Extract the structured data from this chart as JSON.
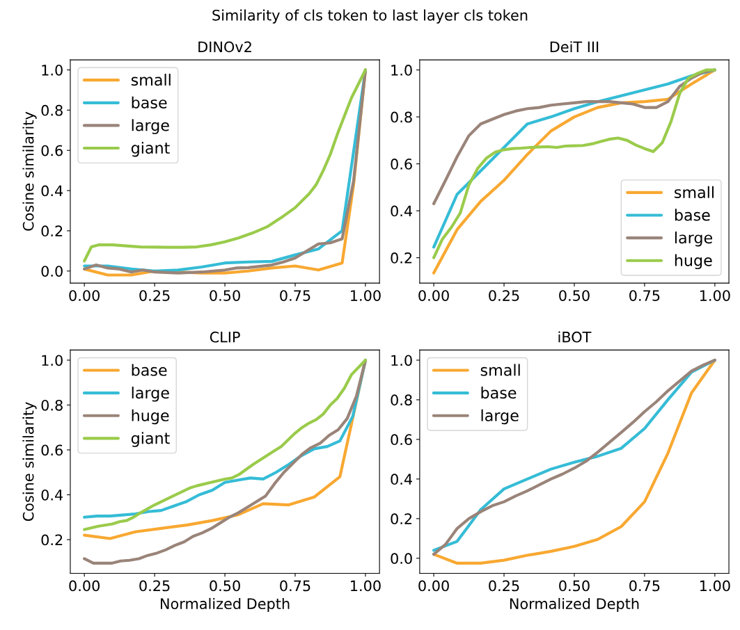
{
  "chart_data": [
    {
      "type": "line",
      "title": "DINOv2",
      "ylabel": "Cosine similarity",
      "annotations": [
        "Similarity of cls token to last layer cls token"
      ],
      "legend": "upper left",
      "grid": false,
      "xlim": [
        -0.05,
        1.05
      ],
      "ylim": [
        -0.06,
        1.05
      ],
      "xticks": [
        {
          "value": 0,
          "label": "0.00"
        },
        {
          "value": 0.25,
          "label": "0.25"
        },
        {
          "value": 0.5,
          "label": "0.50"
        },
        {
          "value": 0.75,
          "label": "0.75"
        },
        {
          "value": 1,
          "label": "1.00"
        }
      ],
      "yticks": [
        {
          "value": 0,
          "label": "0.0"
        },
        {
          "value": 0.2,
          "label": "0.2"
        },
        {
          "value": 0.4,
          "label": "0.4"
        },
        {
          "value": 0.6,
          "label": "0.6"
        },
        {
          "value": 0.8,
          "label": "0.8"
        },
        {
          "value": 1,
          "label": "1.0"
        }
      ],
      "series": [
        {
          "name": "small",
          "color": "#f8a831",
          "x": [
            0,
            0.083,
            0.167,
            0.25,
            0.333,
            0.417,
            0.5,
            0.583,
            0.667,
            0.75,
            0.833,
            0.917,
            0.958,
            1
          ],
          "values": [
            0.01,
            -0.02,
            -0.02,
            0,
            -0.005,
            -0.01,
            -0.01,
            0,
            0.015,
            0.025,
            0.005,
            0.04,
            0.43,
            1
          ]
        },
        {
          "name": "base",
          "color": "#35bcd6",
          "x": [
            0,
            0.083,
            0.167,
            0.25,
            0.333,
            0.417,
            0.5,
            0.583,
            0.667,
            0.75,
            0.833,
            0.917,
            1
          ],
          "values": [
            0.025,
            0.025,
            0.01,
            0,
            0.005,
            0.02,
            0.04,
            0.045,
            0.048,
            0.08,
            0.11,
            0.2,
            1
          ]
        },
        {
          "name": "large",
          "color": "#9a8479",
          "x": [
            0,
            0.042,
            0.083,
            0.125,
            0.167,
            0.208,
            0.25,
            0.333,
            0.417,
            0.5,
            0.542,
            0.583,
            0.667,
            0.708,
            0.75,
            0.792,
            0.833,
            0.875,
            0.917,
            0.958,
            1
          ],
          "values": [
            0.01,
            0.03,
            0.015,
            0.01,
            -0.005,
            0.005,
            -0.005,
            -0.01,
            -0.005,
            0.005,
            0.015,
            0.017,
            0.03,
            0.045,
            0.065,
            0.1,
            0.135,
            0.14,
            0.16,
            0.45,
            1
          ]
        },
        {
          "name": "giant",
          "color": "#9acb4b",
          "x": [
            0,
            0.025,
            0.05,
            0.1,
            0.15,
            0.2,
            0.3,
            0.35,
            0.4,
            0.45,
            0.5,
            0.55,
            0.6,
            0.65,
            0.7,
            0.75,
            0.8,
            0.825,
            0.85,
            0.875,
            0.9,
            0.925,
            0.95,
            0.975,
            1
          ],
          "values": [
            0.05,
            0.12,
            0.13,
            0.13,
            0.125,
            0.12,
            0.118,
            0.118,
            0.12,
            0.13,
            0.145,
            0.165,
            0.19,
            0.22,
            0.265,
            0.315,
            0.385,
            0.43,
            0.5,
            0.58,
            0.68,
            0.77,
            0.86,
            0.93,
            1
          ]
        }
      ]
    },
    {
      "type": "line",
      "title": "DeiT III",
      "legend": "lower right",
      "grid": false,
      "xlim": [
        -0.05,
        1.05
      ],
      "ylim": [
        0.092,
        1.043
      ],
      "xticks": [
        {
          "value": 0,
          "label": "0.00"
        },
        {
          "value": 0.25,
          "label": "0.25"
        },
        {
          "value": 0.5,
          "label": "0.50"
        },
        {
          "value": 0.75,
          "label": "0.75"
        },
        {
          "value": 1,
          "label": "1.00"
        }
      ],
      "yticks": [
        {
          "value": 0.2,
          "label": "0.2"
        },
        {
          "value": 0.4,
          "label": "0.4"
        },
        {
          "value": 0.6,
          "label": "0.6"
        },
        {
          "value": 0.8,
          "label": "0.8"
        },
        {
          "value": 1,
          "label": "1.0"
        }
      ],
      "series": [
        {
          "name": "small",
          "color": "#f8a831",
          "x": [
            0,
            0.083,
            0.167,
            0.25,
            0.333,
            0.417,
            0.5,
            0.583,
            0.667,
            0.75,
            0.833,
            0.917,
            1
          ],
          "values": [
            0.135,
            0.32,
            0.44,
            0.53,
            0.64,
            0.74,
            0.8,
            0.84,
            0.86,
            0.865,
            0.875,
            0.94,
            1
          ]
        },
        {
          "name": "base",
          "color": "#35bcd6",
          "x": [
            0,
            0.083,
            0.167,
            0.25,
            0.333,
            0.417,
            0.5,
            0.583,
            0.667,
            0.75,
            0.833,
            0.917,
            1
          ],
          "values": [
            0.245,
            0.47,
            0.57,
            0.67,
            0.77,
            0.8,
            0.835,
            0.865,
            0.89,
            0.915,
            0.94,
            0.975,
            1
          ]
        },
        {
          "name": "large",
          "color": "#9a8479",
          "x": [
            0,
            0.042,
            0.083,
            0.125,
            0.167,
            0.208,
            0.25,
            0.292,
            0.333,
            0.375,
            0.417,
            0.458,
            0.5,
            0.542,
            0.583,
            0.625,
            0.667,
            0.708,
            0.75,
            0.792,
            0.833,
            0.875,
            0.917,
            0.958,
            1
          ],
          "values": [
            0.43,
            0.53,
            0.63,
            0.72,
            0.77,
            0.79,
            0.81,
            0.825,
            0.835,
            0.84,
            0.85,
            0.855,
            0.86,
            0.865,
            0.865,
            0.865,
            0.86,
            0.855,
            0.84,
            0.84,
            0.865,
            0.93,
            0.965,
            0.99,
            1
          ]
        },
        {
          "name": "huge",
          "color": "#9acb4b",
          "x": [
            0,
            0.031,
            0.063,
            0.094,
            0.125,
            0.156,
            0.188,
            0.219,
            0.25,
            0.281,
            0.313,
            0.344,
            0.375,
            0.406,
            0.438,
            0.469,
            0.5,
            0.531,
            0.563,
            0.594,
            0.625,
            0.656,
            0.688,
            0.719,
            0.75,
            0.781,
            0.813,
            0.844,
            0.875,
            0.906,
            0.938,
            0.969,
            1
          ],
          "values": [
            0.2,
            0.28,
            0.33,
            0.39,
            0.51,
            0.58,
            0.625,
            0.65,
            0.66,
            0.665,
            0.667,
            0.67,
            0.672,
            0.673,
            0.67,
            0.676,
            0.677,
            0.678,
            0.685,
            0.695,
            0.705,
            0.71,
            0.7,
            0.68,
            0.665,
            0.652,
            0.69,
            0.78,
            0.9,
            0.965,
            0.985,
            1,
            1
          ]
        }
      ]
    },
    {
      "type": "line",
      "title": "CLIP",
      "xlabel": "Normalized Depth",
      "ylabel": "Cosine similarity",
      "legend": "upper left",
      "grid": false,
      "xlim": [
        -0.05,
        1.05
      ],
      "ylim": [
        0.05,
        1.045
      ],
      "xticks": [
        {
          "value": 0,
          "label": "0.00"
        },
        {
          "value": 0.25,
          "label": "0.25"
        },
        {
          "value": 0.5,
          "label": "0.50"
        },
        {
          "value": 0.75,
          "label": "0.75"
        },
        {
          "value": 1,
          "label": "1.00"
        }
      ],
      "yticks": [
        {
          "value": 0.2,
          "label": "0.2"
        },
        {
          "value": 0.4,
          "label": "0.4"
        },
        {
          "value": 0.6,
          "label": "0.6"
        },
        {
          "value": 0.8,
          "label": "0.8"
        },
        {
          "value": 1,
          "label": "1.0"
        }
      ],
      "series": [
        {
          "name": "base",
          "color": "#f8a831",
          "x": [
            0,
            0.091,
            0.182,
            0.273,
            0.364,
            0.455,
            0.545,
            0.636,
            0.727,
            0.818,
            0.909,
            1
          ],
          "values": [
            0.22,
            0.205,
            0.235,
            0.25,
            0.265,
            0.285,
            0.31,
            0.36,
            0.355,
            0.39,
            0.48,
            1
          ]
        },
        {
          "name": "large",
          "color": "#35bcd6",
          "x": [
            0,
            0.045,
            0.091,
            0.136,
            0.182,
            0.227,
            0.273,
            0.318,
            0.364,
            0.409,
            0.455,
            0.5,
            0.545,
            0.591,
            0.636,
            0.682,
            0.727,
            0.773,
            0.818,
            0.864,
            0.909,
            0.955,
            1
          ],
          "values": [
            0.3,
            0.305,
            0.305,
            0.31,
            0.315,
            0.325,
            0.33,
            0.35,
            0.37,
            0.4,
            0.42,
            0.455,
            0.465,
            0.475,
            0.47,
            0.5,
            0.535,
            0.575,
            0.605,
            0.615,
            0.64,
            0.75,
            1
          ]
        },
        {
          "name": "huge",
          "color": "#9a8479",
          "x": [
            0,
            0.032,
            0.097,
            0.129,
            0.161,
            0.194,
            0.226,
            0.258,
            0.29,
            0.323,
            0.355,
            0.387,
            0.419,
            0.452,
            0.484,
            0.516,
            0.548,
            0.581,
            0.613,
            0.645,
            0.677,
            0.71,
            0.742,
            0.774,
            0.806,
            0.839,
            0.871,
            0.903,
            0.935,
            0.968,
            1
          ],
          "values": [
            0.115,
            0.095,
            0.095,
            0.105,
            0.108,
            0.115,
            0.13,
            0.14,
            0.155,
            0.175,
            0.19,
            0.215,
            0.23,
            0.25,
            0.275,
            0.3,
            0.32,
            0.345,
            0.37,
            0.395,
            0.45,
            0.5,
            0.54,
            0.58,
            0.61,
            0.63,
            0.665,
            0.69,
            0.74,
            0.84,
            1
          ]
        },
        {
          "name": "giant",
          "color": "#9acb4b",
          "x": [
            0,
            0.05,
            0.1,
            0.125,
            0.15,
            0.175,
            0.2,
            0.25,
            0.3,
            0.35,
            0.375,
            0.4,
            0.45,
            0.5,
            0.525,
            0.55,
            0.6,
            0.625,
            0.65,
            0.675,
            0.7,
            0.725,
            0.75,
            0.775,
            0.8,
            0.825,
            0.85,
            0.875,
            0.9,
            0.925,
            0.95,
            1
          ],
          "values": [
            0.245,
            0.26,
            0.27,
            0.28,
            0.285,
            0.3,
            0.32,
            0.355,
            0.385,
            0.415,
            0.43,
            0.44,
            0.455,
            0.47,
            0.475,
            0.49,
            0.535,
            0.555,
            0.575,
            0.595,
            0.615,
            0.645,
            0.675,
            0.7,
            0.72,
            0.735,
            0.76,
            0.8,
            0.83,
            0.875,
            0.935,
            1
          ]
        }
      ]
    },
    {
      "type": "line",
      "title": "iBOT",
      "xlabel": "Normalized Depth",
      "legend": "upper left",
      "grid": false,
      "xlim": [
        -0.05,
        1.05
      ],
      "ylim": [
        -0.076,
        1.051
      ],
      "xticks": [
        {
          "value": 0,
          "label": "0.00"
        },
        {
          "value": 0.25,
          "label": "0.25"
        },
        {
          "value": 0.5,
          "label": "0.50"
        },
        {
          "value": 0.75,
          "label": "0.75"
        },
        {
          "value": 1,
          "label": "1.00"
        }
      ],
      "yticks": [
        {
          "value": 0,
          "label": "0.0"
        },
        {
          "value": 0.2,
          "label": "0.2"
        },
        {
          "value": 0.4,
          "label": "0.4"
        },
        {
          "value": 0.6,
          "label": "0.6"
        },
        {
          "value": 0.8,
          "label": "0.8"
        },
        {
          "value": 1,
          "label": "1.0"
        }
      ],
      "series": [
        {
          "name": "small",
          "color": "#f8a831",
          "x": [
            0,
            0.083,
            0.167,
            0.25,
            0.333,
            0.417,
            0.5,
            0.583,
            0.667,
            0.75,
            0.833,
            0.917,
            1
          ],
          "values": [
            0.02,
            -0.025,
            -0.025,
            -0.01,
            0.015,
            0.035,
            0.06,
            0.095,
            0.16,
            0.285,
            0.53,
            0.835,
            1
          ]
        },
        {
          "name": "base",
          "color": "#35bcd6",
          "x": [
            0,
            0.083,
            0.167,
            0.25,
            0.333,
            0.417,
            0.5,
            0.583,
            0.667,
            0.75,
            0.833,
            0.917,
            1
          ],
          "values": [
            0.04,
            0.085,
            0.245,
            0.35,
            0.4,
            0.45,
            0.485,
            0.515,
            0.555,
            0.655,
            0.8,
            0.94,
            1
          ]
        },
        {
          "name": "large",
          "color": "#9a8479",
          "x": [
            0,
            0.042,
            0.083,
            0.125,
            0.167,
            0.208,
            0.25,
            0.292,
            0.333,
            0.375,
            0.417,
            0.458,
            0.5,
            0.542,
            0.583,
            0.625,
            0.667,
            0.708,
            0.75,
            0.792,
            0.833,
            0.875,
            0.917,
            0.958,
            1
          ],
          "values": [
            0.02,
            0.07,
            0.15,
            0.2,
            0.235,
            0.265,
            0.285,
            0.315,
            0.34,
            0.37,
            0.4,
            0.425,
            0.455,
            0.49,
            0.535,
            0.585,
            0.635,
            0.685,
            0.74,
            0.79,
            0.845,
            0.895,
            0.945,
            0.975,
            1
          ]
        }
      ]
    }
  ]
}
